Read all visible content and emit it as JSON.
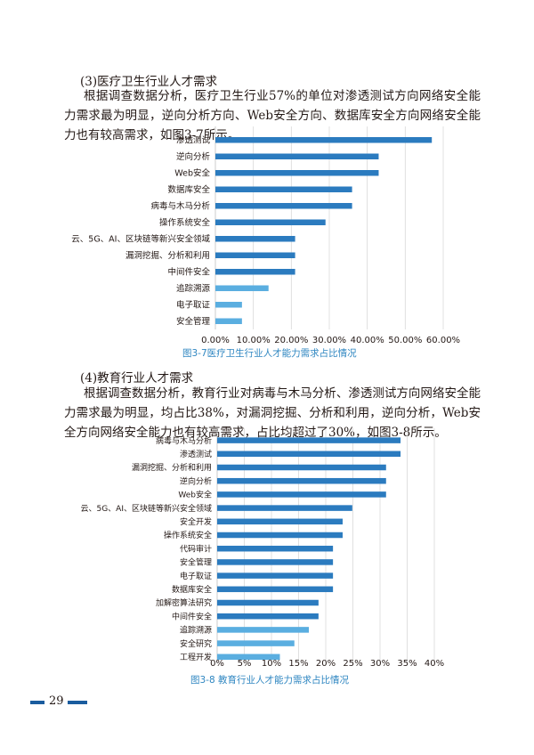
{
  "section3": {
    "heading": "(3)医疗卫生行业人才需求",
    "paragraph": "根据调查数据分析，医疗卫生行业57%的单位对渗透测试方向网络安全能力需求最为明显，逆向分析方向、Web安全方向、数据库安全方向网络安全能力也有较高需求，如图3-7所示。",
    "caption": "图3-7医疗卫生行业人才能力需求占比情况"
  },
  "section4": {
    "heading": "(4)教育行业人才需求",
    "paragraph": "根据调查数据分析，教育行业对病毒与木马分析、渗透测试方向网络安全能力需求最为明显，均占比38%，对漏洞挖掘、分析和利用，逆向分析，Web安全方向网络安全能力也有较高需求，占比均超过了30%，如图3-8所示。",
    "caption": "图3-8  教育行业人才能力需求占比情况"
  },
  "page_number": "29",
  "colors": {
    "bar_dark": "#2b7bbf",
    "bar_light": "#5aaee0",
    "caption": "#2e86c1",
    "footer": "#1a5c9e"
  },
  "chart_data": [
    {
      "type": "bar",
      "orientation": "horizontal",
      "categories": [
        "渗透测试",
        "逆向分析",
        "Web安全",
        "数据库安全",
        "病毒与木马分析",
        "操作系统安全",
        "云、5G、AI、区块链等新兴安全领域",
        "漏洞挖掘、分析和利用",
        "中间件安全",
        "追踪溯源",
        "电子取证",
        "安全管理"
      ],
      "values": [
        57,
        43,
        43,
        36,
        36,
        29,
        21,
        21,
        21,
        14,
        7,
        7
      ],
      "xlim": [
        0,
        60
      ],
      "xticks": [
        "0.00%",
        "10.00%",
        "20.00%",
        "30.00%",
        "40.00%",
        "50.00%",
        "60.00%"
      ],
      "grid": "vertical"
    },
    {
      "type": "bar",
      "orientation": "horizontal",
      "categories": [
        "病毒与木马分析",
        "渗透测试",
        "漏洞挖掘、分析和利用",
        "逆向分析",
        "Web安全",
        "云、5G、AI、区块链等新兴安全领域",
        "安全开发",
        "操作系统安全",
        "代码审计",
        "安全管理",
        "电子取证",
        "数据库安全",
        "加解密算法研究",
        "中间件安全",
        "追踪溯源",
        "安全研究",
        "工程开发"
      ],
      "values": [
        38,
        38,
        35,
        35,
        35,
        28,
        26,
        26,
        24,
        24,
        24,
        24,
        21,
        21,
        19,
        16,
        13
      ],
      "xlim": [
        0,
        45
      ],
      "xticks": [
        "0%",
        "5%",
        "10%",
        "15%",
        "20%",
        "25%",
        "30%",
        "35%",
        "40%"
      ],
      "grid": "vertical"
    }
  ]
}
